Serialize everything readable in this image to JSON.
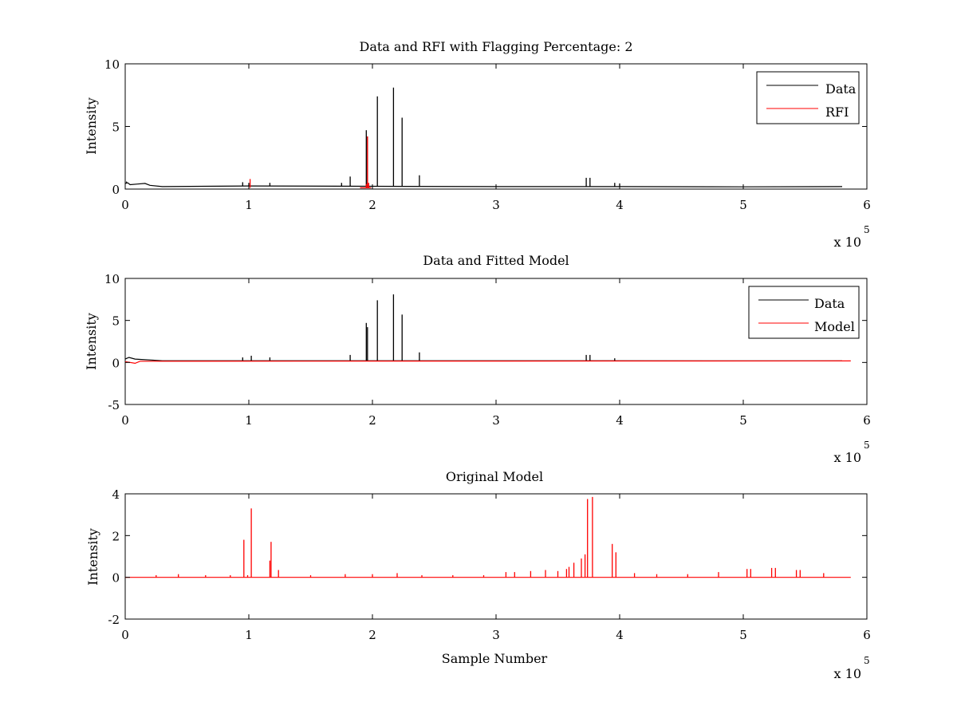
{
  "chart_data": [
    {
      "type": "line",
      "title": "Data and RFI with Flagging Percentage: 2",
      "xlabel": "",
      "ylabel": "Intensity",
      "xlim": [
        0,
        600000
      ],
      "ylim": [
        0,
        10
      ],
      "x_ticks": [
        "0",
        "1",
        "2",
        "3",
        "4",
        "5",
        "6"
      ],
      "y_ticks": [
        "0",
        "5",
        "10"
      ],
      "x_multiplier": {
        "prefix": "x 10",
        "exponent": "5"
      },
      "legend": {
        "placement": "top-right",
        "entries": [
          "Data",
          "RFI"
        ]
      },
      "grid": false,
      "series": [
        {
          "name": "Data",
          "color": "#000000",
          "baseline": [
            [
              0,
              0.45
            ],
            [
              2000,
              0.5
            ],
            [
              4000,
              0.35
            ],
            [
              10000,
              0.4
            ],
            [
              16000,
              0.45
            ],
            [
              20000,
              0.3
            ],
            [
              30000,
              0.2
            ],
            [
              100000,
              0.25
            ],
            [
              300000,
              0.2
            ],
            [
              400000,
              0.2
            ],
            [
              500000,
              0.18
            ],
            [
              580000,
              0.2
            ]
          ],
          "spikes": [
            [
              1000,
              0.6
            ],
            [
              95000,
              0.55
            ],
            [
              100000,
              0.5
            ],
            [
              117000,
              0.5
            ],
            [
              175000,
              0.5
            ],
            [
              182000,
              1.0
            ],
            [
              195000,
              4.7
            ],
            [
              196000,
              4.2
            ],
            [
              204000,
              7.4
            ],
            [
              217000,
              8.1
            ],
            [
              224000,
              5.7
            ],
            [
              238000,
              1.1
            ],
            [
              373000,
              0.9
            ],
            [
              376000,
              0.9
            ],
            [
              396000,
              0.5
            ],
            [
              400000,
              0.45
            ]
          ],
          "x_end": 587000
        },
        {
          "name": "RFI",
          "color": "#ff0000",
          "baseline": [
            [
              190000,
              0.1
            ],
            [
              199000,
              0.1
            ]
          ],
          "spikes": [
            [
              101000,
              0.8
            ],
            [
              195000,
              0.4
            ],
            [
              196000,
              4.2
            ],
            [
              197000,
              0.5
            ]
          ],
          "x_end": 199000
        }
      ]
    },
    {
      "type": "line",
      "title": "Data and Fitted Model",
      "xlabel": "",
      "ylabel": "Intensity",
      "xlim": [
        0,
        600000
      ],
      "ylim": [
        -5,
        10
      ],
      "x_ticks": [
        "0",
        "1",
        "2",
        "3",
        "4",
        "5",
        "6"
      ],
      "y_ticks": [
        "-5",
        "0",
        "5",
        "10"
      ],
      "x_multiplier": {
        "prefix": "x 10",
        "exponent": "5"
      },
      "legend": {
        "placement": "top-right",
        "entries": [
          "Data",
          "Model"
        ]
      },
      "grid": false,
      "series": [
        {
          "name": "Data",
          "color": "#000000",
          "baseline": [
            [
              0,
              0.4
            ],
            [
              3000,
              0.6
            ],
            [
              8000,
              0.4
            ],
            [
              20000,
              0.3
            ],
            [
              30000,
              0.2
            ],
            [
              300000,
              0.2
            ],
            [
              580000,
              0.18
            ]
          ],
          "spikes": [
            [
              95000,
              0.6
            ],
            [
              102000,
              0.8
            ],
            [
              117000,
              0.6
            ],
            [
              182000,
              0.9
            ],
            [
              195000,
              4.7
            ],
            [
              196000,
              4.2
            ],
            [
              204000,
              7.4
            ],
            [
              217000,
              8.1
            ],
            [
              224000,
              5.7
            ],
            [
              238000,
              1.2
            ],
            [
              373000,
              0.9
            ],
            [
              376000,
              0.9
            ],
            [
              396000,
              0.5
            ]
          ],
          "x_end": 587000
        },
        {
          "name": "Model",
          "color": "#ff0000",
          "baseline": [
            [
              0,
              0.1
            ],
            [
              8000,
              -0.1
            ],
            [
              12000,
              0.15
            ],
            [
              587000,
              0.18
            ]
          ],
          "spikes": [],
          "x_end": 587000
        }
      ]
    },
    {
      "type": "line",
      "title": "Original Model",
      "xlabel": "Sample Number",
      "ylabel": "Intensity",
      "xlim": [
        0,
        600000
      ],
      "ylim": [
        -2,
        4
      ],
      "x_ticks": [
        "0",
        "1",
        "2",
        "3",
        "4",
        "5",
        "6"
      ],
      "y_ticks": [
        "-2",
        "0",
        "2",
        "4"
      ],
      "x_multiplier": {
        "prefix": "x 10",
        "exponent": "5"
      },
      "legend": null,
      "grid": false,
      "series": [
        {
          "name": "",
          "color": "#ff0000",
          "baseline": [
            [
              0,
              0.0
            ],
            [
              587000,
              0.0
            ]
          ],
          "spikes": [
            [
              25000,
              0.1
            ],
            [
              43000,
              0.15
            ],
            [
              65000,
              0.1
            ],
            [
              85000,
              0.1
            ],
            [
              96000,
              1.8
            ],
            [
              99000,
              0.1
            ],
            [
              102000,
              3.3
            ],
            [
              117000,
              0.8
            ],
            [
              118000,
              1.7
            ],
            [
              124000,
              0.35
            ],
            [
              150000,
              0.1
            ],
            [
              178000,
              0.15
            ],
            [
              200000,
              0.15
            ],
            [
              220000,
              0.2
            ],
            [
              240000,
              0.1
            ],
            [
              265000,
              0.1
            ],
            [
              290000,
              0.1
            ],
            [
              308000,
              0.25
            ],
            [
              315000,
              0.25
            ],
            [
              328000,
              0.3
            ],
            [
              340000,
              0.35
            ],
            [
              350000,
              0.3
            ],
            [
              357000,
              0.4
            ],
            [
              359000,
              0.5
            ],
            [
              363000,
              0.7
            ],
            [
              369000,
              0.9
            ],
            [
              372000,
              1.1
            ],
            [
              374000,
              3.75
            ],
            [
              378000,
              3.85
            ],
            [
              394000,
              1.6
            ],
            [
              397000,
              1.2
            ],
            [
              412000,
              0.2
            ],
            [
              430000,
              0.15
            ],
            [
              455000,
              0.15
            ],
            [
              480000,
              0.25
            ],
            [
              503000,
              0.4
            ],
            [
              506000,
              0.4
            ],
            [
              523000,
              0.45
            ],
            [
              526000,
              0.45
            ],
            [
              543000,
              0.35
            ],
            [
              546000,
              0.35
            ],
            [
              565000,
              0.2
            ]
          ],
          "x_end": 587000
        }
      ]
    }
  ]
}
